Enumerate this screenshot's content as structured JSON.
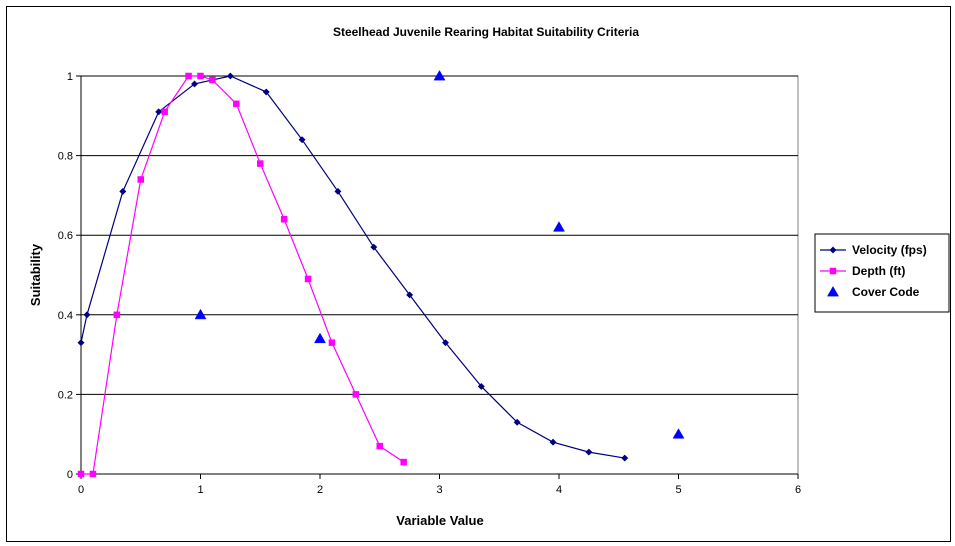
{
  "chart_data": {
    "type": "scatter",
    "title": "Steelhead Juvenile Rearing Habitat Suitability Criteria",
    "xlabel": "Variable Value",
    "ylabel": "Suitability",
    "xlim": [
      0,
      6
    ],
    "ylim": [
      0,
      1
    ],
    "x_ticks": [
      "0",
      "1",
      "2",
      "3",
      "4",
      "5",
      "6"
    ],
    "y_ticks": [
      "0",
      "0.2",
      "0.4",
      "0.6",
      "0.8",
      "1"
    ],
    "grid": "horizontal",
    "legend_position": "right",
    "series": [
      {
        "name": "Velocity (fps)",
        "style": "line-diamond",
        "color": "#000080",
        "x": [
          0,
          0.05,
          0.35,
          0.65,
          0.95,
          1.25,
          1.55,
          1.85,
          2.15,
          2.45,
          2.75,
          3.05,
          3.35,
          3.65,
          3.95,
          4.25,
          4.55
        ],
        "y": [
          0.33,
          0.4,
          0.71,
          0.91,
          0.98,
          1.0,
          0.96,
          0.84,
          0.71,
          0.57,
          0.45,
          0.33,
          0.22,
          0.13,
          0.08,
          0.055,
          0.04
        ]
      },
      {
        "name": "Depth (ft)",
        "style": "line-square",
        "color": "#ff00ff",
        "x": [
          0,
          0.1,
          0.3,
          0.5,
          0.7,
          0.9,
          1.0,
          1.1,
          1.3,
          1.5,
          1.7,
          1.9,
          2.1,
          2.3,
          2.5,
          2.7
        ],
        "y": [
          0,
          0,
          0.4,
          0.74,
          0.91,
          1.0,
          1.0,
          0.99,
          0.93,
          0.78,
          0.64,
          0.49,
          0.33,
          0.2,
          0.07,
          0.03
        ]
      },
      {
        "name": "Cover Code",
        "style": "marker-triangle",
        "color": "#0000ff",
        "x": [
          1,
          2,
          3,
          4,
          5
        ],
        "y": [
          0.4,
          0.34,
          1.0,
          0.62,
          0.1
        ]
      }
    ]
  }
}
